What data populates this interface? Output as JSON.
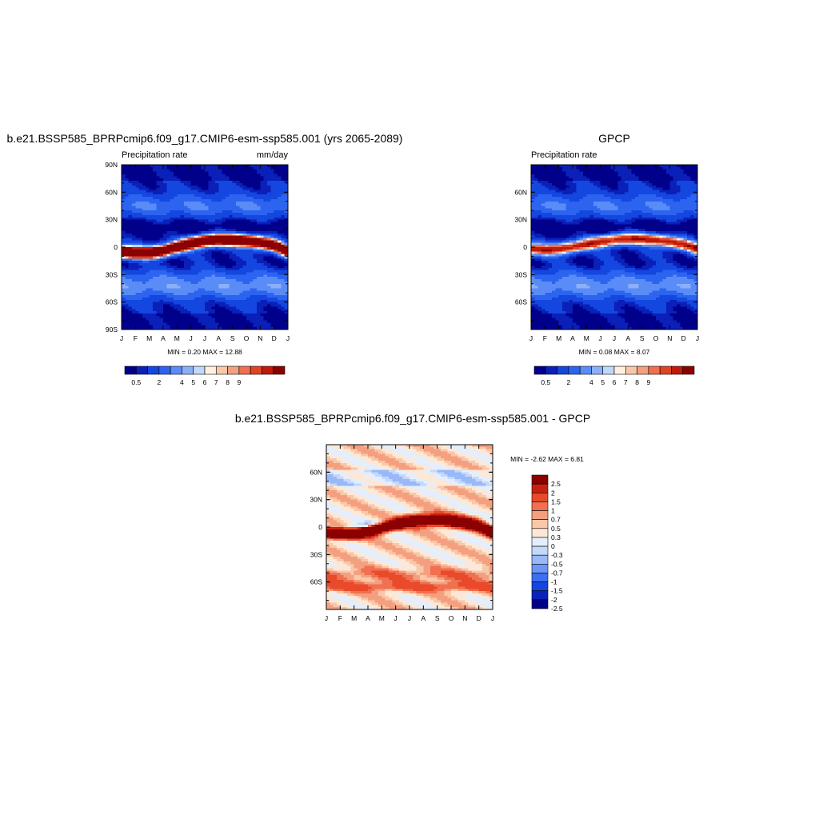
{
  "palette": {
    "abs": [
      "#00008b",
      "#0a20b8",
      "#1446e0",
      "#2c64f0",
      "#5a8cf8",
      "#8cb0f8",
      "#c0d8fa",
      "#fff0e0",
      "#f8c8a8",
      "#f4a080",
      "#f07050",
      "#e04424",
      "#c01a0a",
      "#8b0000"
    ],
    "diff": [
      "#00008b",
      "#0a22b8",
      "#1446e0",
      "#3c6ef2",
      "#6c96f6",
      "#98b8f8",
      "#c4d8fa",
      "#e4eefc",
      "#fde8d8",
      "#f8c8a8",
      "#f4a080",
      "#f07050",
      "#e84a2a",
      "#c82010",
      "#8b0000"
    ]
  },
  "chart_data": [
    {
      "type": "heatmap",
      "title": "b.e21.BSSP585_BPRPcmip6.f09_g17.CMIP6-esm-ssp585.001 (yrs 2065-2089)",
      "left_label": "Precipitation rate",
      "right_label": "mm/day",
      "x_tick_labels": [
        "J",
        "F",
        "M",
        "A",
        "M",
        "J",
        "J",
        "A",
        "S",
        "O",
        "N",
        "D",
        "J"
      ],
      "y_tick_labels": [
        "90N",
        "60N",
        "30N",
        "0",
        "30S",
        "60S",
        "90S"
      ],
      "y_tick_values": [
        90,
        60,
        30,
        0,
        -30,
        -60,
        -90
      ],
      "ylim": [
        -90,
        90
      ],
      "minmax_text": "MIN =   0.20 MAX =  12.88",
      "colorbar_labels": [
        "0.5",
        "2",
        "4",
        "5",
        "6",
        "7",
        "8",
        "9"
      ],
      "colorbar_orientation": "horizontal",
      "itcz_peak": 12.88,
      "itcz_latitude_by_month": [
        -5,
        -6,
        -6,
        -4,
        0,
        4,
        7,
        8,
        8,
        7,
        5,
        2,
        -5
      ]
    },
    {
      "type": "heatmap",
      "title": "GPCP",
      "left_label": "Precipitation rate",
      "right_label": "",
      "x_tick_labels": [
        "J",
        "F",
        "M",
        "A",
        "M",
        "J",
        "J",
        "A",
        "S",
        "O",
        "N",
        "D",
        "J"
      ],
      "y_tick_labels": [
        "60N",
        "30N",
        "0",
        "30S",
        "60S"
      ],
      "y_tick_values": [
        60,
        30,
        0,
        -30,
        -60
      ],
      "ylim": [
        -90,
        90
      ],
      "minmax_text": "MIN =   0.08 MAX =   8.07",
      "colorbar_labels": [
        "0.5",
        "2",
        "4",
        "5",
        "6",
        "7",
        "8",
        "9"
      ],
      "colorbar_orientation": "horizontal",
      "itcz_peak": 8.07,
      "itcz_latitude_by_month": [
        -2,
        -3,
        -2,
        0,
        3,
        6,
        8,
        9,
        9,
        8,
        6,
        3,
        -2
      ]
    },
    {
      "type": "heatmap",
      "title": "b.e21.BSSP585_BPRPcmip6.f09_g17.CMIP6-esm-ssp585.001 - GPCP",
      "left_label": "",
      "right_label": "",
      "x_tick_labels": [
        "J",
        "F",
        "M",
        "A",
        "M",
        "J",
        "J",
        "A",
        "S",
        "O",
        "N",
        "D",
        "J"
      ],
      "y_tick_labels": [
        "60N",
        "30N",
        "0",
        "30S",
        "60S"
      ],
      "y_tick_values": [
        60,
        30,
        0,
        -30,
        -60
      ],
      "ylim": [
        -90,
        90
      ],
      "minmax_text": "MIN =  -2.62 MAX =   6.81",
      "colorbar_labels": [
        "2.5",
        "2",
        "1.5",
        "1",
        "0.7",
        "0.5",
        "0.3",
        "0",
        "-0.3",
        "-0.5",
        "-0.7",
        "-1",
        "-1.5",
        "-2",
        "-2.5"
      ],
      "colorbar_orientation": "vertical"
    }
  ]
}
